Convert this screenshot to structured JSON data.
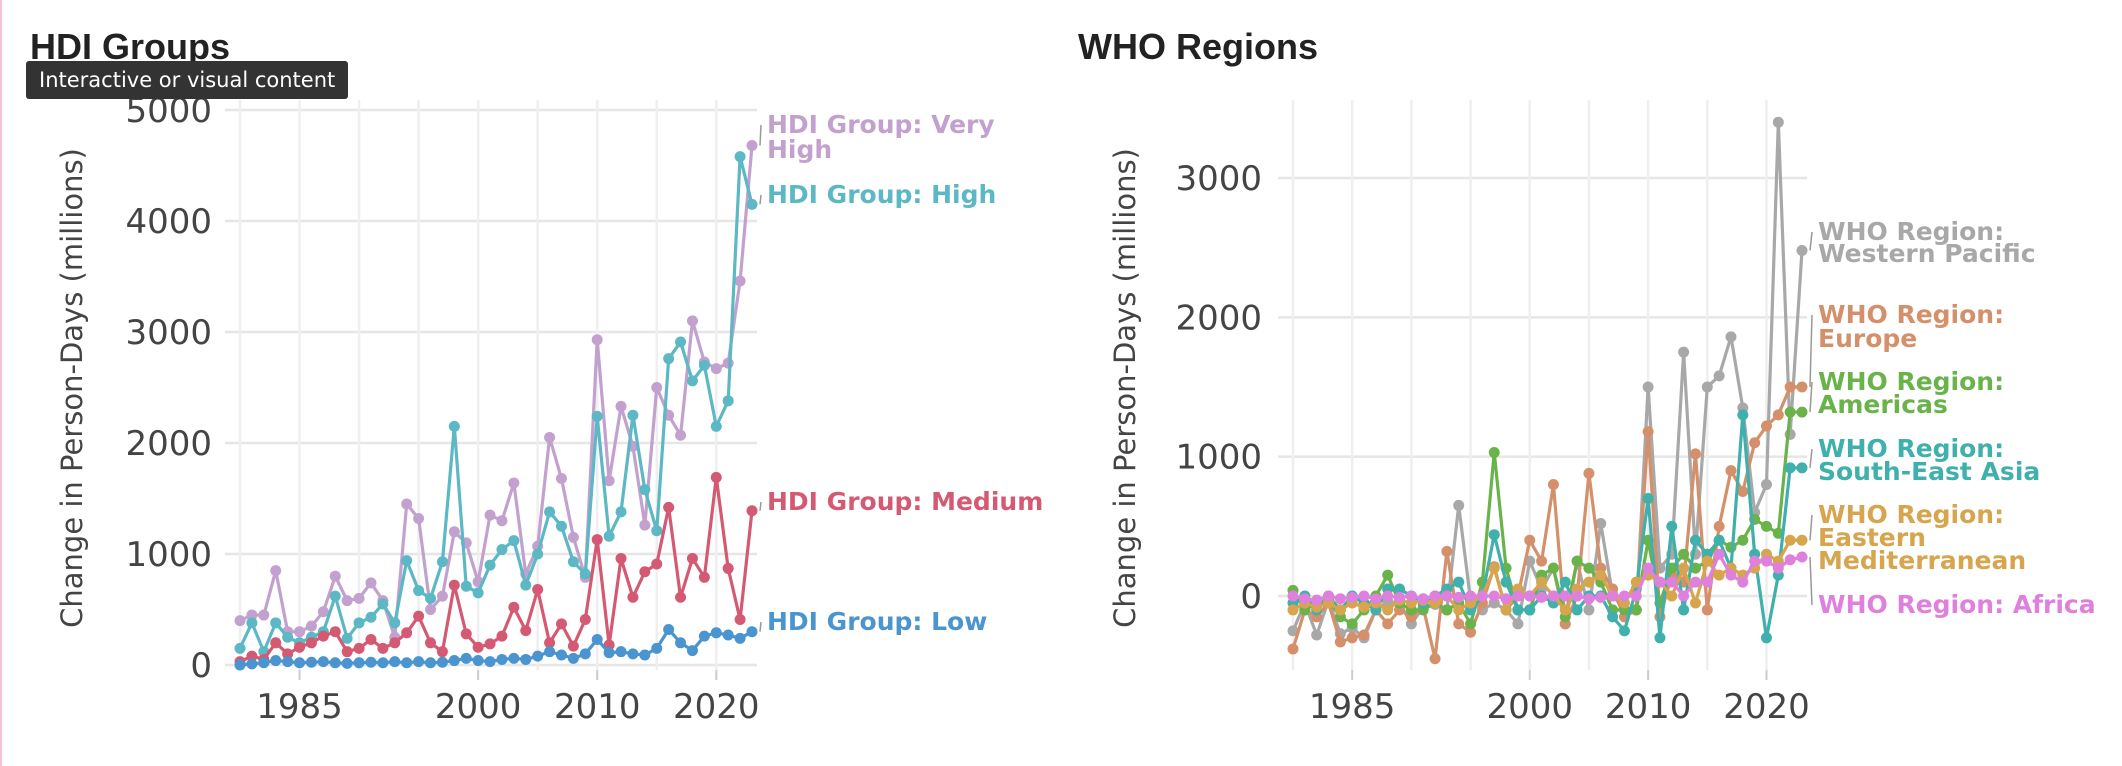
{
  "tooltip": "Interactive or visual content",
  "chart_data": [
    {
      "type": "line",
      "title": "HDI Groups",
      "xlabel": "",
      "ylabel": "Change in Person-Days (millions)",
      "xlim": [
        1980,
        2023
      ],
      "ylim": [
        0,
        5000
      ],
      "xticks": [
        1985,
        2000,
        2010,
        2020
      ],
      "yticks": [
        0,
        1000,
        2000,
        3000,
        4000,
        5000
      ],
      "grid": true,
      "series": [
        {
          "name": "HDI Group: Very High",
          "label_lines": [
            "HDI Group: Very",
            "High"
          ],
          "color": "#c3a1cf",
          "x": [
            1980,
            1981,
            1982,
            1983,
            1984,
            1985,
            1986,
            1987,
            1988,
            1989,
            1990,
            1991,
            1992,
            1993,
            1994,
            1995,
            1996,
            1997,
            1998,
            1999,
            2000,
            2001,
            2002,
            2003,
            2004,
            2005,
            2006,
            2007,
            2008,
            2009,
            2010,
            2011,
            2012,
            2013,
            2014,
            2015,
            2016,
            2017,
            2018,
            2019,
            2020,
            2021,
            2022
          ],
          "y": [
            400,
            450,
            450,
            850,
            300,
            300,
            350,
            480,
            800,
            580,
            600,
            740,
            580,
            250,
            1450,
            1320,
            500,
            620,
            1200,
            1100,
            750,
            1350,
            1300,
            1640,
            820,
            1070,
            2050,
            1680,
            1150,
            790,
            2930,
            1660,
            2330,
            1970,
            1260,
            2500,
            2250,
            2070,
            3100,
            2730,
            2670,
            2720,
            3460
          ],
          "end_x": 2023,
          "end_y": 4680
        },
        {
          "name": "HDI Group: High",
          "label_lines": [
            "HDI Group: High"
          ],
          "color": "#5cb8c4",
          "x": [
            1980,
            1981,
            1982,
            1983,
            1984,
            1985,
            1986,
            1987,
            1988,
            1989,
            1990,
            1991,
            1992,
            1993,
            1994,
            1995,
            1996,
            1997,
            1998,
            1999,
            2000,
            2001,
            2002,
            2003,
            2004,
            2005,
            2006,
            2007,
            2008,
            2009,
            2010,
            2011,
            2012,
            2013,
            2014,
            2015,
            2016,
            2017,
            2018,
            2019,
            2020,
            2021,
            2022
          ],
          "y": [
            150,
            380,
            120,
            380,
            250,
            200,
            250,
            300,
            620,
            240,
            380,
            430,
            550,
            380,
            940,
            670,
            600,
            930,
            2150,
            710,
            650,
            900,
            1040,
            1120,
            720,
            1000,
            1380,
            1250,
            930,
            820,
            2240,
            1160,
            1380,
            2250,
            1580,
            1210,
            2760,
            2910,
            2560,
            2700,
            2150,
            2380,
            4580
          ],
          "end_x": 2023,
          "end_y": 4150
        },
        {
          "name": "HDI Group: Medium",
          "label_lines": [
            "HDI Group: Medium"
          ],
          "color": "#d45a73",
          "x": [
            1980,
            1981,
            1982,
            1983,
            1984,
            1985,
            1986,
            1987,
            1988,
            1989,
            1990,
            1991,
            1992,
            1993,
            1994,
            1995,
            1996,
            1997,
            1998,
            1999,
            2000,
            2001,
            2002,
            2003,
            2004,
            2005,
            2006,
            2007,
            2008,
            2009,
            2010,
            2011,
            2012,
            2013,
            2014,
            2015,
            2016,
            2017,
            2018,
            2019,
            2020,
            2021,
            2022
          ],
          "y": [
            30,
            80,
            50,
            200,
            100,
            160,
            200,
            260,
            300,
            120,
            150,
            230,
            150,
            200,
            290,
            440,
            200,
            120,
            720,
            280,
            160,
            190,
            260,
            520,
            310,
            680,
            200,
            370,
            170,
            410,
            1130,
            180,
            960,
            610,
            840,
            910,
            1420,
            610,
            960,
            790,
            1690,
            870,
            410
          ],
          "end_x": 2023,
          "end_y": 1390
        },
        {
          "name": "HDI Group: Low",
          "label_lines": [
            "HDI Group: Low"
          ],
          "color": "#4a94cf",
          "x": [
            1980,
            1981,
            1982,
            1983,
            1984,
            1985,
            1986,
            1987,
            1988,
            1989,
            1990,
            1991,
            1992,
            1993,
            1994,
            1995,
            1996,
            1997,
            1998,
            1999,
            2000,
            2001,
            2002,
            2003,
            2004,
            2005,
            2006,
            2007,
            2008,
            2009,
            2010,
            2011,
            2012,
            2013,
            2014,
            2015,
            2016,
            2017,
            2018,
            2019,
            2020,
            2021,
            2022
          ],
          "y": [
            0,
            10,
            20,
            40,
            30,
            20,
            25,
            30,
            20,
            15,
            20,
            25,
            20,
            30,
            20,
            30,
            20,
            25,
            40,
            60,
            40,
            30,
            50,
            60,
            50,
            80,
            120,
            90,
            60,
            100,
            230,
            110,
            120,
            100,
            90,
            150,
            320,
            200,
            130,
            260,
            290,
            270,
            240
          ],
          "end_x": 2023,
          "end_y": 300
        }
      ]
    },
    {
      "type": "line",
      "title": "WHO Regions",
      "xlabel": "",
      "ylabel": "Change in Person-Days (millions)",
      "xlim": [
        1980,
        2023
      ],
      "ylim": [
        -500,
        3400
      ],
      "xticks": [
        1985,
        2000,
        2010,
        2020
      ],
      "yticks": [
        0,
        1000,
        2000,
        3000
      ],
      "grid": true,
      "series": [
        {
          "name": "WHO Region: Western Pacific",
          "label_lines": [
            "WHO Region:",
            "Western Pacific"
          ],
          "color": "#a8a8a8",
          "x": [
            1980,
            1981,
            1982,
            1983,
            1984,
            1985,
            1986,
            1987,
            1988,
            1989,
            1990,
            1991,
            1992,
            1993,
            1994,
            1995,
            1996,
            1997,
            1998,
            1999,
            2000,
            2001,
            2002,
            2003,
            2004,
            2005,
            2006,
            2007,
            2008,
            2009,
            2010,
            2011,
            2012,
            2013,
            2014,
            2015,
            2016,
            2017,
            2018,
            2019,
            2020,
            2021,
            2022
          ],
          "y": [
            -250,
            -50,
            -280,
            -30,
            -270,
            -230,
            -300,
            -100,
            -40,
            -50,
            -200,
            -80,
            -60,
            -100,
            650,
            -30,
            -100,
            -50,
            -100,
            -200,
            250,
            50,
            200,
            -200,
            250,
            -100,
            520,
            10,
            -100,
            -100,
            1500,
            200,
            300,
            1750,
            300,
            1500,
            1580,
            1860,
            1350,
            600,
            800,
            3400,
            1160
          ],
          "end_x": 2023,
          "end_y": 2480
        },
        {
          "name": "WHO Region: Europe",
          "label_lines": [
            "WHO Region:",
            "Europe"
          ],
          "color": "#d4906a",
          "x": [
            1980,
            1981,
            1982,
            1983,
            1984,
            1985,
            1986,
            1987,
            1988,
            1989,
            1990,
            1991,
            1992,
            1993,
            1994,
            1995,
            1996,
            1997,
            1998,
            1999,
            2000,
            2001,
            2002,
            2003,
            2004,
            2005,
            2006,
            2007,
            2008,
            2009,
            2010,
            2011,
            2012,
            2013,
            2014,
            2015,
            2016,
            2017,
            2018,
            2019,
            2020,
            2021,
            2022
          ],
          "y": [
            -380,
            -100,
            -150,
            -50,
            -330,
            -300,
            -280,
            -100,
            -200,
            -100,
            -150,
            -80,
            -450,
            320,
            -200,
            -260,
            -50,
            210,
            -100,
            0,
            400,
            250,
            800,
            -200,
            0,
            880,
            200,
            50,
            -150,
            -100,
            1180,
            -150,
            150,
            100,
            1020,
            -100,
            500,
            900,
            750,
            1100,
            1220,
            1300,
            1500
          ],
          "end_x": 2023,
          "end_y": 1500
        },
        {
          "name": "WHO Region: Americas",
          "label_lines": [
            "WHO Region:",
            "Americas"
          ],
          "color": "#6ab34a",
          "x": [
            1980,
            1981,
            1982,
            1983,
            1984,
            1985,
            1986,
            1987,
            1988,
            1989,
            1990,
            1991,
            1992,
            1993,
            1994,
            1995,
            1996,
            1997,
            1998,
            1999,
            2000,
            2001,
            2002,
            2003,
            2004,
            2005,
            2006,
            2007,
            2008,
            2009,
            2010,
            2011,
            2012,
            2013,
            2014,
            2015,
            2016,
            2017,
            2018,
            2019,
            2020,
            2021,
            2022
          ],
          "y": [
            40,
            -100,
            -50,
            -30,
            -150,
            -200,
            -100,
            0,
            150,
            -50,
            -100,
            -100,
            -50,
            -100,
            -50,
            -200,
            100,
            1030,
            200,
            -100,
            -100,
            150,
            200,
            -150,
            250,
            200,
            100,
            -100,
            -100,
            -100,
            400,
            -50,
            200,
            300,
            200,
            250,
            400,
            350,
            400,
            550,
            500,
            450,
            1320
          ],
          "end_x": 2023,
          "end_y": 1320
        },
        {
          "name": "WHO Region: South-East Asia",
          "label_lines": [
            "WHO Region:",
            "South-East Asia"
          ],
          "color": "#3fb0ac",
          "x": [
            1980,
            1981,
            1982,
            1983,
            1984,
            1985,
            1986,
            1987,
            1988,
            1989,
            1990,
            1991,
            1992,
            1993,
            1994,
            1995,
            1996,
            1997,
            1998,
            1999,
            2000,
            2001,
            2002,
            2003,
            2004,
            2005,
            2006,
            2007,
            2008,
            2009,
            2010,
            2011,
            2012,
            2013,
            2014,
            2015,
            2016,
            2017,
            2018,
            2019,
            2020,
            2021,
            2022
          ],
          "y": [
            -50,
            0,
            -100,
            0,
            -100,
            0,
            -50,
            -100,
            50,
            50,
            0,
            -50,
            0,
            50,
            100,
            -100,
            0,
            440,
            100,
            -100,
            -100,
            0,
            -50,
            100,
            -100,
            0,
            0,
            -150,
            -250,
            50,
            700,
            -300,
            500,
            -100,
            400,
            300,
            400,
            200,
            1300,
            300,
            -300,
            150,
            920
          ],
          "end_x": 2023,
          "end_y": 920
        },
        {
          "name": "WHO Region: Eastern Mediterranean",
          "label_lines": [
            "WHO Region:",
            "Eastern",
            "Mediterranean"
          ],
          "color": "#d6a54e",
          "x": [
            1980,
            1981,
            1982,
            1983,
            1984,
            1985,
            1986,
            1987,
            1988,
            1989,
            1990,
            1991,
            1992,
            1993,
            1994,
            1995,
            1996,
            1997,
            1998,
            1999,
            2000,
            2001,
            2002,
            2003,
            2004,
            2005,
            2006,
            2007,
            2008,
            2009,
            2010,
            2011,
            2012,
            2013,
            2014,
            2015,
            2016,
            2017,
            2018,
            2019,
            2020,
            2021,
            2022
          ],
          "y": [
            -100,
            -50,
            -80,
            -50,
            -100,
            -50,
            -80,
            -50,
            -100,
            -30,
            -50,
            -30,
            -50,
            0,
            -100,
            -50,
            0,
            200,
            -100,
            50,
            0,
            100,
            0,
            -100,
            50,
            100,
            150,
            0,
            -50,
            100,
            150,
            100,
            0,
            200,
            -50,
            250,
            150,
            200,
            150,
            200,
            300,
            250,
            400
          ],
          "end_x": 2023,
          "end_y": 400
        },
        {
          "name": "WHO Region: Africa",
          "label_lines": [
            "WHO Region: Africa"
          ],
          "color": "#e080de",
          "x": [
            1980,
            1981,
            1982,
            1983,
            1984,
            1985,
            1986,
            1987,
            1988,
            1989,
            1990,
            1991,
            1992,
            1993,
            1994,
            1995,
            1996,
            1997,
            1998,
            1999,
            2000,
            2001,
            2002,
            2003,
            2004,
            2005,
            2006,
            2007,
            2008,
            2009,
            2010,
            2011,
            2012,
            2013,
            2014,
            2015,
            2016,
            2017,
            2018,
            2019,
            2020,
            2021,
            2022
          ],
          "y": [
            0,
            -20,
            -30,
            0,
            -20,
            -10,
            0,
            -20,
            0,
            -10,
            0,
            -20,
            0,
            0,
            -10,
            0,
            0,
            0,
            -20,
            0,
            0,
            -10,
            0,
            0,
            0,
            -20,
            -10,
            0,
            0,
            0,
            200,
            100,
            100,
            0,
            100,
            100,
            300,
            150,
            100,
            250,
            250,
            200,
            260
          ],
          "end_x": 2023,
          "end_y": 280
        }
      ]
    }
  ]
}
